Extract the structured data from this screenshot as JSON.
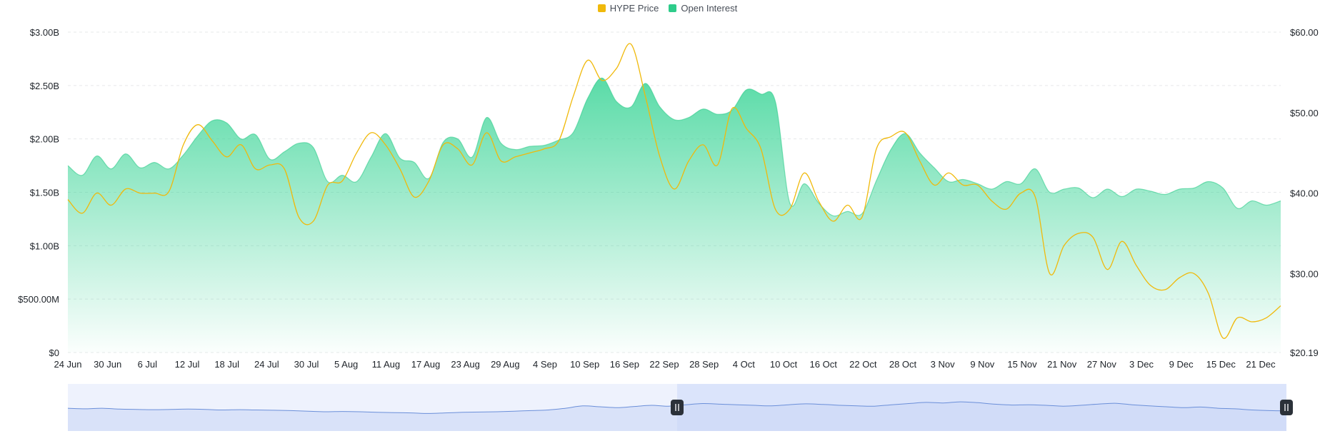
{
  "colors": {
    "price": "#f0b90b",
    "oi": "#2ecc8a",
    "oi_fill_top": "#3dd598",
    "grid": "#e6e8ea",
    "axis_text": "#1e2329",
    "navigator_fill": "#dbe4fb",
    "navigator_line": "#6b8fd9",
    "handle": "#2b3139"
  },
  "legend": [
    {
      "label": "HYPE Price",
      "color_key": "price"
    },
    {
      "label": "Open Interest",
      "color_key": "oi"
    }
  ],
  "chart_data": {
    "type": "area",
    "title": "",
    "x_tick_labels": [
      "24 Jun",
      "30 Jun",
      "6 Jul",
      "12 Jul",
      "18 Jul",
      "24 Jul",
      "30 Jul",
      "5 Aug",
      "11 Aug",
      "17 Aug",
      "23 Aug",
      "29 Aug",
      "4 Sep",
      "10 Sep",
      "16 Sep",
      "22 Sep",
      "28 Sep",
      "4 Oct",
      "10 Oct",
      "16 Oct",
      "22 Oct",
      "28 Oct",
      "3 Nov",
      "9 Nov",
      "15 Nov",
      "21 Nov",
      "27 Nov",
      "3 Dec",
      "9 Dec",
      "15 Dec",
      "21 Dec"
    ],
    "y_left": {
      "label": "",
      "range": [
        0,
        3.0
      ],
      "ticks": [
        0,
        0.5,
        1.0,
        1.5,
        2.0,
        2.5,
        3.0
      ],
      "tick_labels": [
        "$0",
        "$500.00M",
        "$1.00B",
        "$1.50B",
        "$2.00B",
        "$2.50B",
        "$3.00B"
      ]
    },
    "y_right": {
      "label": "",
      "range": [
        20.19,
        60.0
      ],
      "ticks": [
        20.19,
        30,
        40,
        50,
        60
      ],
      "tick_labels": [
        "$20.19",
        "$30.00",
        "$40.00",
        "$50.00",
        "$60.00"
      ]
    },
    "grid": true,
    "legend_position": "top-center",
    "series": [
      {
        "name": "Open Interest",
        "axis": "left",
        "kind": "area",
        "values": [
          1.75,
          1.66,
          1.84,
          1.72,
          1.86,
          1.73,
          1.78,
          1.72,
          1.85,
          2.03,
          2.17,
          2.15,
          2.0,
          2.04,
          1.81,
          1.88,
          1.96,
          1.92,
          1.6,
          1.66,
          1.6,
          1.83,
          2.05,
          1.82,
          1.78,
          1.63,
          1.97,
          2.0,
          1.83,
          2.2,
          1.96,
          1.9,
          1.93,
          1.94,
          1.99,
          2.06,
          2.38,
          2.57,
          2.35,
          2.3,
          2.52,
          2.3,
          2.18,
          2.2,
          2.28,
          2.23,
          2.27,
          2.46,
          2.42,
          2.35,
          1.4,
          1.58,
          1.4,
          1.28,
          1.32,
          1.3,
          1.61,
          1.9,
          2.05,
          1.87,
          1.73,
          1.6,
          1.62,
          1.58,
          1.53,
          1.6,
          1.58,
          1.72,
          1.5,
          1.53,
          1.54,
          1.45,
          1.53,
          1.46,
          1.53,
          1.51,
          1.48,
          1.53,
          1.54,
          1.6,
          1.54,
          1.35,
          1.42,
          1.38,
          1.42
        ]
      },
      {
        "name": "HYPE Price",
        "axis": "right",
        "kind": "line",
        "values": [
          39.2,
          37.5,
          40.0,
          38.5,
          40.5,
          40.0,
          40.0,
          40.2,
          46.0,
          48.5,
          46.5,
          44.5,
          46.0,
          43.0,
          43.5,
          43.0,
          37.0,
          36.5,
          41.0,
          41.5,
          45.0,
          47.5,
          46.0,
          43.0,
          39.5,
          41.5,
          46.0,
          45.5,
          43.5,
          47.5,
          44.0,
          44.5,
          45.0,
          45.5,
          46.5,
          52.0,
          56.5,
          54.0,
          55.5,
          58.5,
          52.0,
          44.5,
          40.5,
          44.0,
          46.0,
          43.5,
          50.5,
          48.0,
          45.5,
          38.0,
          38.0,
          42.5,
          39.0,
          36.5,
          38.5,
          37.0,
          45.5,
          47.0,
          47.5,
          44.0,
          41.0,
          42.5,
          41.0,
          41.0,
          39.0,
          38.0,
          40.0,
          39.5,
          30.0,
          33.5,
          35.0,
          34.5,
          30.5,
          34.0,
          31.0,
          28.5,
          28.0,
          29.5,
          30.0,
          27.5,
          22.0,
          24.5,
          24.0,
          24.5,
          26.0
        ]
      }
    ]
  },
  "navigator": {
    "values": [
      0.78,
      0.76,
      0.78,
      0.75,
      0.74,
      0.73,
      0.74,
      0.75,
      0.74,
      0.72,
      0.73,
      0.72,
      0.71,
      0.7,
      0.68,
      0.66,
      0.67,
      0.66,
      0.64,
      0.63,
      0.62,
      0.6,
      0.62,
      0.64,
      0.65,
      0.66,
      0.68,
      0.7,
      0.72,
      0.78,
      0.86,
      0.83,
      0.8,
      0.84,
      0.88,
      0.85,
      0.9,
      0.94,
      0.92,
      0.9,
      0.88,
      0.86,
      0.9,
      0.93,
      0.91,
      0.88,
      0.86,
      0.85,
      0.9,
      0.94,
      0.98,
      0.96,
      1.0,
      0.97,
      0.92,
      0.89,
      0.9,
      0.88,
      0.85,
      0.88,
      0.92,
      0.95,
      0.9,
      0.86,
      0.83,
      0.8,
      0.82,
      0.78,
      0.76,
      0.72,
      0.7,
      0.69
    ],
    "selection_start": 0.5,
    "selection_end": 1.0
  }
}
